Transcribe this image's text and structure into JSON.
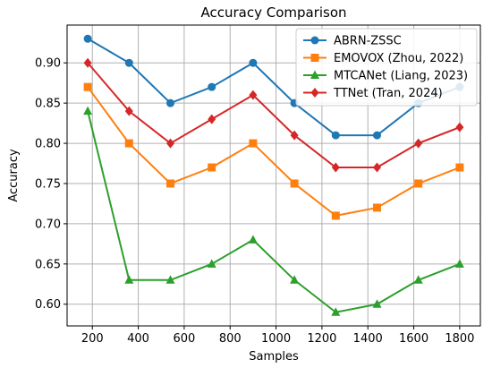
{
  "chart_data": {
    "type": "line",
    "title": "Accuracy Comparison",
    "xlabel": "Samples",
    "ylabel": "Accuracy",
    "x": [
      180,
      360,
      540,
      720,
      900,
      1080,
      1260,
      1440,
      1620,
      1800
    ],
    "xticks": [
      200,
      400,
      600,
      800,
      1000,
      1200,
      1400,
      1600,
      1800
    ],
    "xtick_labels": [
      "200",
      "400",
      "600",
      "800",
      "1000",
      "1200",
      "1400",
      "1600",
      "1800"
    ],
    "yticks": [
      0.6,
      0.65,
      0.7,
      0.75,
      0.8,
      0.85,
      0.9
    ],
    "ytick_labels": [
      "0.60",
      "0.65",
      "0.70",
      "0.75",
      "0.80",
      "0.85",
      "0.90"
    ],
    "xlim": [
      90,
      1890
    ],
    "ylim": [
      0.573,
      0.947
    ],
    "grid": true,
    "legend_position": "top-right",
    "series": [
      {
        "name": "ABRN-ZSSC",
        "color": "#1f77b4",
        "marker": "circle",
        "values": [
          0.93,
          0.9,
          0.85,
          0.87,
          0.9,
          0.85,
          0.81,
          0.81,
          0.85,
          0.87
        ]
      },
      {
        "name": "EMOVOX (Zhou, 2022)",
        "color": "#ff7f0e",
        "marker": "square",
        "values": [
          0.87,
          0.8,
          0.75,
          0.77,
          0.8,
          0.75,
          0.71,
          0.72,
          0.75,
          0.77
        ]
      },
      {
        "name": "MTCANet (Liang, 2023)",
        "color": "#2ca02c",
        "marker": "triangle",
        "values": [
          0.84,
          0.63,
          0.63,
          0.65,
          0.68,
          0.63,
          0.59,
          0.6,
          0.63,
          0.65
        ]
      },
      {
        "name": "TTNet (Tran, 2024)",
        "color": "#d62728",
        "marker": "diamond",
        "values": [
          0.9,
          0.84,
          0.8,
          0.83,
          0.86,
          0.81,
          0.77,
          0.77,
          0.8,
          0.82
        ]
      }
    ]
  }
}
